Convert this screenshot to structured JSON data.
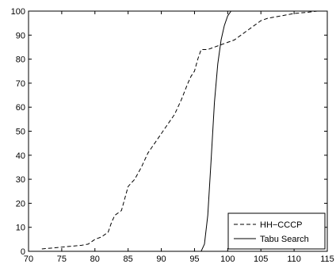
{
  "chart_data": {
    "type": "line",
    "xlim": [
      70,
      115
    ],
    "ylim": [
      0,
      100
    ],
    "xticks": [
      70,
      75,
      80,
      85,
      90,
      95,
      100,
      105,
      110,
      115
    ],
    "yticks": [
      0,
      10,
      20,
      30,
      40,
      50,
      60,
      70,
      80,
      90,
      100
    ],
    "grid": false,
    "legend_position": "bottom-right",
    "series": [
      {
        "name": "HH−CCCP",
        "style": "dashed",
        "color": "#000000",
        "x": [
          72,
          74,
          76,
          78,
          79,
          80,
          81,
          82,
          82.5,
          83,
          84,
          84.5,
          85,
          86,
          87,
          88,
          89,
          90,
          91,
          92,
          93,
          94,
          94.5,
          95,
          95.5,
          96,
          97,
          98,
          99,
          100,
          101,
          102,
          103,
          104,
          105,
          106,
          108,
          110,
          112,
          113.5
        ],
        "y": [
          1,
          1.5,
          2,
          2.5,
          3,
          5,
          6,
          8,
          12,
          15,
          17,
          22,
          27,
          30,
          35,
          41,
          45,
          49,
          53,
          57,
          63,
          70,
          73,
          75,
          80,
          84,
          84,
          85,
          86,
          87,
          88,
          90,
          92,
          94,
          96,
          97,
          98,
          99,
          99.5,
          100
        ]
      },
      {
        "name": "Tabu Search",
        "style": "solid",
        "color": "#000000",
        "x": [
          96,
          96.5,
          97,
          97.5,
          98,
          98.5,
          99,
          99.5,
          100,
          100.5
        ],
        "y": [
          0,
          3,
          15,
          38,
          62,
          78,
          88,
          94,
          98,
          100
        ]
      }
    ]
  }
}
